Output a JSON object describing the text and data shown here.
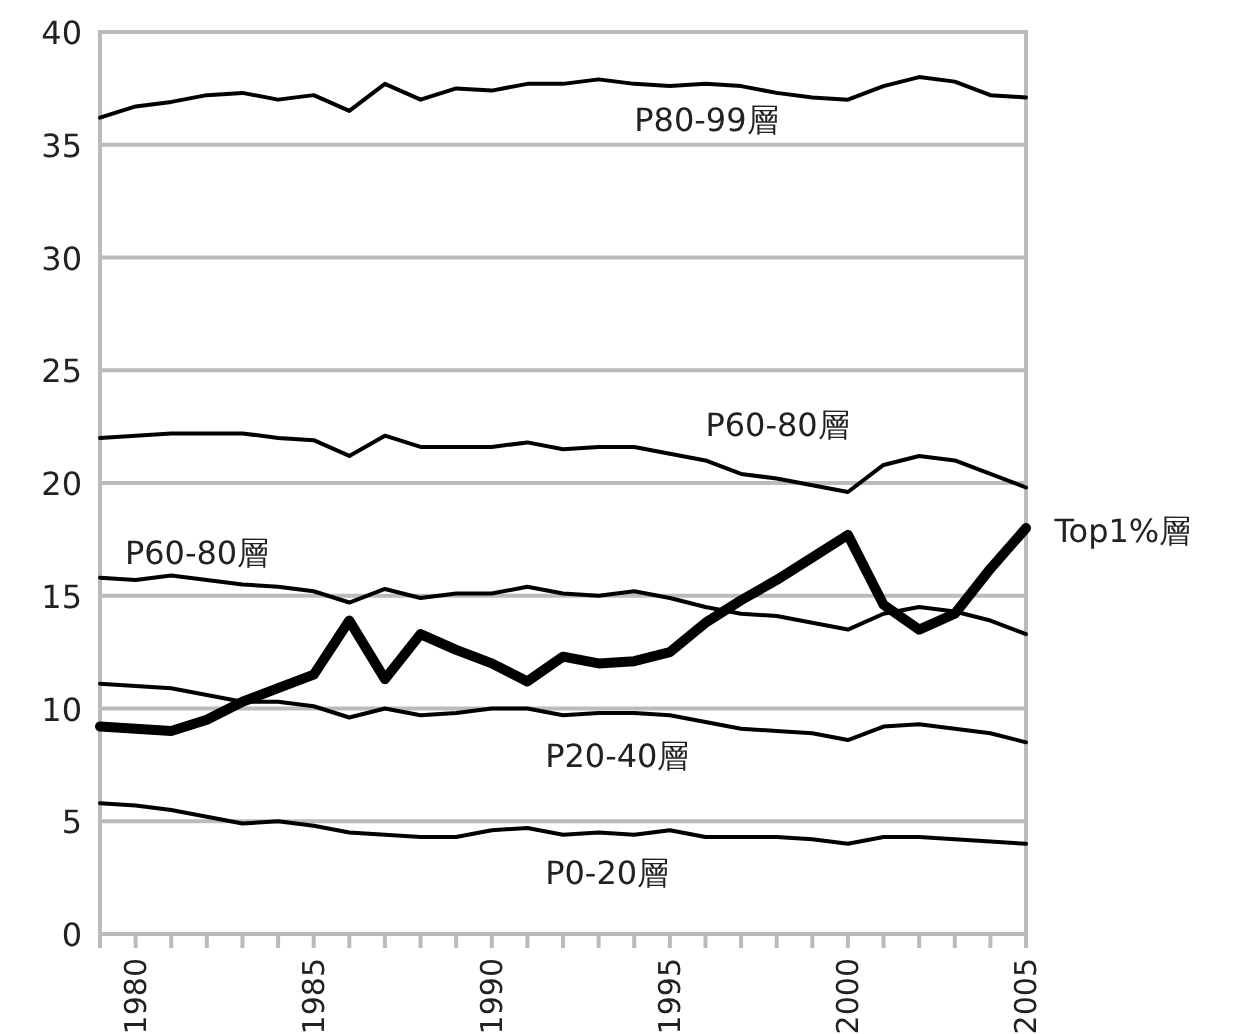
{
  "chart_data": {
    "type": "line",
    "x": [
      1979,
      1980,
      1981,
      1982,
      1983,
      1984,
      1985,
      1986,
      1987,
      1988,
      1989,
      1990,
      1991,
      1992,
      1993,
      1994,
      1995,
      1996,
      1997,
      1998,
      1999,
      2000,
      2001,
      2002,
      2003,
      2004,
      2005
    ],
    "series": [
      {
        "name": "P80-99層",
        "color": "#000000",
        "values": [
          36.2,
          36.7,
          36.9,
          37.2,
          37.3,
          37.0,
          37.2,
          36.5,
          37.7,
          37.0,
          37.5,
          37.4,
          37.7,
          37.7,
          37.9,
          37.7,
          37.6,
          37.7,
          37.6,
          37.3,
          37.1,
          37.0,
          37.6,
          38.0,
          37.8,
          37.2,
          37.1
        ]
      },
      {
        "name": "P60-80層",
        "color": "#000000",
        "values": [
          22.0,
          22.1,
          22.2,
          22.2,
          22.2,
          22.0,
          21.9,
          21.2,
          22.1,
          21.6,
          21.6,
          21.6,
          21.8,
          21.5,
          21.6,
          21.6,
          21.3,
          21.0,
          20.4,
          20.2,
          19.9,
          19.6,
          20.8,
          21.2,
          21.0,
          20.4,
          19.8
        ]
      },
      {
        "name": "P60-80層",
        "color": "#000000",
        "values": [
          15.8,
          15.7,
          15.9,
          15.7,
          15.5,
          15.4,
          15.2,
          14.7,
          15.3,
          14.9,
          15.1,
          15.1,
          15.4,
          15.1,
          15.0,
          15.2,
          14.9,
          14.5,
          14.2,
          14.1,
          13.8,
          13.5,
          14.2,
          14.5,
          14.3,
          13.9,
          13.3
        ]
      },
      {
        "name": "Top1%層",
        "color": "#000000",
        "values": [
          9.2,
          9.1,
          9.0,
          9.5,
          10.3,
          10.9,
          11.5,
          13.9,
          11.3,
          13.3,
          12.6,
          12.0,
          11.2,
          12.3,
          12.0,
          12.1,
          12.5,
          13.8,
          14.8,
          15.7,
          16.7,
          17.7,
          14.6,
          13.5,
          14.2,
          16.2,
          18.0
        ]
      },
      {
        "name": "P20-40層",
        "color": "#000000",
        "values": [
          11.1,
          11.0,
          10.9,
          10.6,
          10.3,
          10.3,
          10.1,
          9.6,
          10.0,
          9.7,
          9.8,
          10.0,
          10.0,
          9.7,
          9.8,
          9.8,
          9.7,
          9.4,
          9.1,
          9.0,
          8.9,
          8.6,
          9.2,
          9.3,
          9.1,
          8.9,
          8.5
        ]
      },
      {
        "name": "P0-20層",
        "color": "#000000",
        "values": [
          5.8,
          5.7,
          5.5,
          5.2,
          4.9,
          5.0,
          4.8,
          4.5,
          4.4,
          4.3,
          4.3,
          4.6,
          4.7,
          4.4,
          4.5,
          4.4,
          4.6,
          4.3,
          4.3,
          4.3,
          4.2,
          4.0,
          4.3,
          4.3,
          4.2,
          4.1,
          4.0
        ]
      }
    ],
    "xlim": [
      1979,
      2005
    ],
    "xticks": [
      {
        "value": 1979,
        "label": null
      },
      1980,
      {
        "value": 1981,
        "label": null
      },
      {
        "value": 1982,
        "label": null
      },
      {
        "value": 1983,
        "label": null
      },
      {
        "value": 1984,
        "label": null
      },
      1985,
      {
        "value": 1986,
        "label": null
      },
      {
        "value": 1987,
        "label": null
      },
      {
        "value": 1988,
        "label": null
      },
      {
        "value": 1989,
        "label": null
      },
      1990,
      {
        "value": 1991,
        "label": null
      },
      {
        "value": 1992,
        "label": null
      },
      {
        "value": 1993,
        "label": null
      },
      {
        "value": 1994,
        "label": null
      },
      1995,
      {
        "value": 1996,
        "label": null
      },
      {
        "value": 1997,
        "label": null
      },
      {
        "value": 1998,
        "label": null
      },
      {
        "value": 1999,
        "label": null
      },
      2000,
      {
        "value": 2001,
        "label": null
      },
      {
        "value": 2002,
        "label": null
      },
      {
        "value": 2003,
        "label": null
      },
      {
        "value": 2004,
        "label": null
      },
      2005
    ],
    "ylim": [
      0,
      40
    ],
    "yticks": [
      0,
      5,
      10,
      15,
      20,
      25,
      30,
      35,
      40
    ],
    "grid": "y",
    "marker": "none",
    "line_style": "solid"
  }
}
